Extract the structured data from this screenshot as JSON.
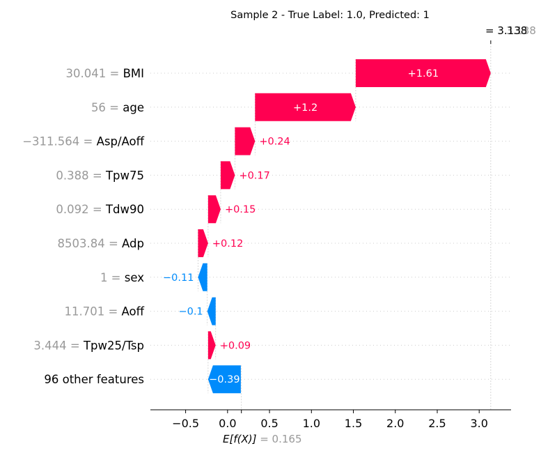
{
  "chart_data": {
    "type": "waterfall",
    "title": "Sample 2 - True Label: 1.0, Predicted: 1",
    "base_value": 0.165,
    "base_value_label": "0.165",
    "base_label_math": "E[f(X)]",
    "output_value": 3.138,
    "output_value_label": "3.138",
    "xlim": [
      -0.92,
      3.38
    ],
    "xticks": [
      -0.5,
      0.0,
      0.5,
      1.0,
      1.5,
      2.0,
      2.5,
      3.0
    ],
    "xtick_labels": [
      "−0.5",
      "0.0",
      "0.5",
      "1.0",
      "1.5",
      "2.0",
      "2.5",
      "3.0"
    ],
    "features": [
      {
        "value_text": "30.041",
        "name": "BMI",
        "contribution": 1.61,
        "label": "+1.61"
      },
      {
        "value_text": "56",
        "name": "age",
        "contribution": 1.2,
        "label": "+1.2"
      },
      {
        "value_text": "−311.564",
        "name": "Asp/Aoff",
        "contribution": 0.24,
        "label": "+0.24"
      },
      {
        "value_text": "0.388",
        "name": "Tpw75",
        "contribution": 0.17,
        "label": "+0.17"
      },
      {
        "value_text": "0.092",
        "name": "Tdw90",
        "contribution": 0.15,
        "label": "+0.15"
      },
      {
        "value_text": "8503.84",
        "name": "Adp",
        "contribution": 0.12,
        "label": "+0.12"
      },
      {
        "value_text": "1",
        "name": "sex",
        "contribution": -0.11,
        "label": "−0.11"
      },
      {
        "value_text": "11.701",
        "name": "Aoff",
        "contribution": -0.1,
        "label": "−0.1"
      },
      {
        "value_text": "3.444",
        "name": "Tpw25/Tsp",
        "contribution": 0.09,
        "label": "+0.09"
      },
      {
        "value_text": "",
        "name": "96 other features",
        "contribution": -0.39,
        "label": "−0.39"
      }
    ],
    "colors": {
      "positive": "#ff0051",
      "negative": "#008bfb",
      "muted": "#999999",
      "text": "#000000",
      "grid": "#cccccc"
    }
  }
}
